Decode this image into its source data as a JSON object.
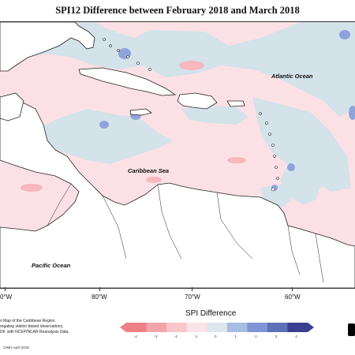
{
  "title": "SPI12 Difference between February 2018 and March 2018",
  "labels": {
    "atlantic": "Atlantic Ocean",
    "caribbean": "Caribbean Sea",
    "pacific": "Pacific Ocean"
  },
  "longitudes": [
    "0°W",
    "80°W",
    "70°W",
    "60°W"
  ],
  "caption_lines": [
    "n Map of the Caribbean Region.",
    "regating station based observations,",
    "DF, with NCEP/NCAR Reanalysis Data."
  ],
  "credit": "CIMH April 2018",
  "legend": {
    "title": "SPI Difference",
    "ticks": [
      "-4",
      "-3",
      "-2",
      "-1",
      "0",
      "1",
      "2",
      "3",
      "4"
    ],
    "colors": [
      "#ef7f87",
      "#f3a4aa",
      "#f8c6cb",
      "#fbe2e6",
      "#dde8ee",
      "#a9bce3",
      "#7f95d6",
      "#5d70b8",
      "#3a3f8f"
    ]
  }
}
